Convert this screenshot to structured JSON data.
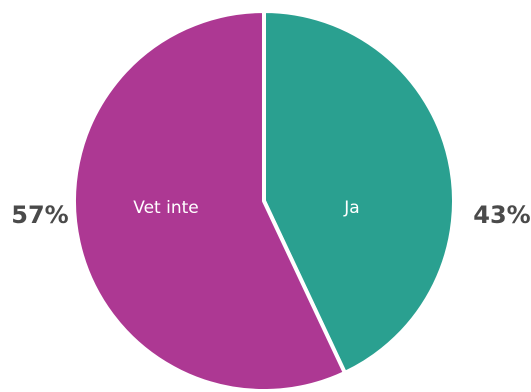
{
  "chart_data": {
    "type": "pie",
    "start_angle": "12 o'clock",
    "direction": "clockwise",
    "legend": "none",
    "slices": [
      {
        "label": "Ja",
        "value": 43,
        "value_label": "43%",
        "color": "#2aa090"
      },
      {
        "label": "Vet inte",
        "value": 57,
        "value_label": "57%",
        "color": "#ad3893"
      }
    ]
  }
}
